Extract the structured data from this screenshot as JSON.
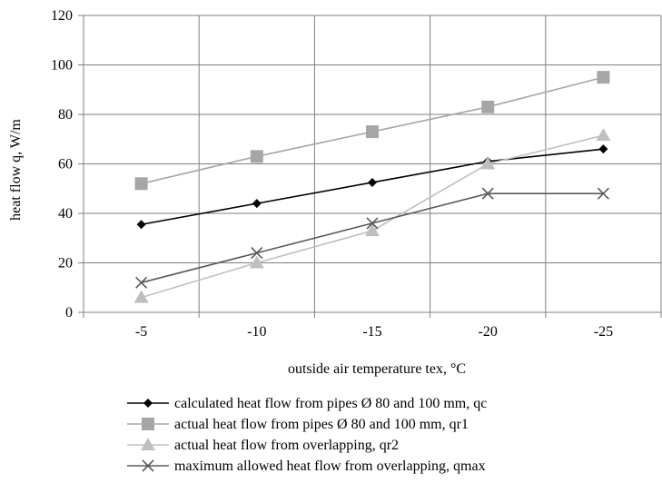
{
  "chart_data": {
    "type": "line",
    "categories": [
      "-5",
      "-10",
      "-15",
      "-20",
      "-25"
    ],
    "ylabel": "heat flow q, W/m",
    "xlabel": "outside air temperature tex, °C",
    "ylim": [
      0,
      120
    ],
    "yticks": [
      0,
      20,
      40,
      60,
      80,
      100,
      120
    ],
    "grid": true,
    "legend_position": "bottom",
    "series": [
      {
        "name": "calculated heat flow  from pipes Ø 80 and 100 mm, qc",
        "values": [
          35.5,
          44,
          52.5,
          61,
          66
        ],
        "color": "#000000",
        "marker": "diamond"
      },
      {
        "name": "actual heat flow  from pipes Ø 80 and 100 mm, qr1",
        "values": [
          52,
          63,
          73,
          83,
          95
        ],
        "color": "#a6a6a6",
        "marker": "square"
      },
      {
        "name": "actual heat flow  from overlapping, qr2",
        "values": [
          6,
          20,
          33,
          60,
          71.5
        ],
        "color": "#bfbfbf",
        "marker": "triangle"
      },
      {
        "name": "maximum allowed heat flow  from overlapping, qmax",
        "values": [
          12,
          24,
          36,
          48,
          48
        ],
        "color": "#595959",
        "marker": "x"
      }
    ]
  }
}
